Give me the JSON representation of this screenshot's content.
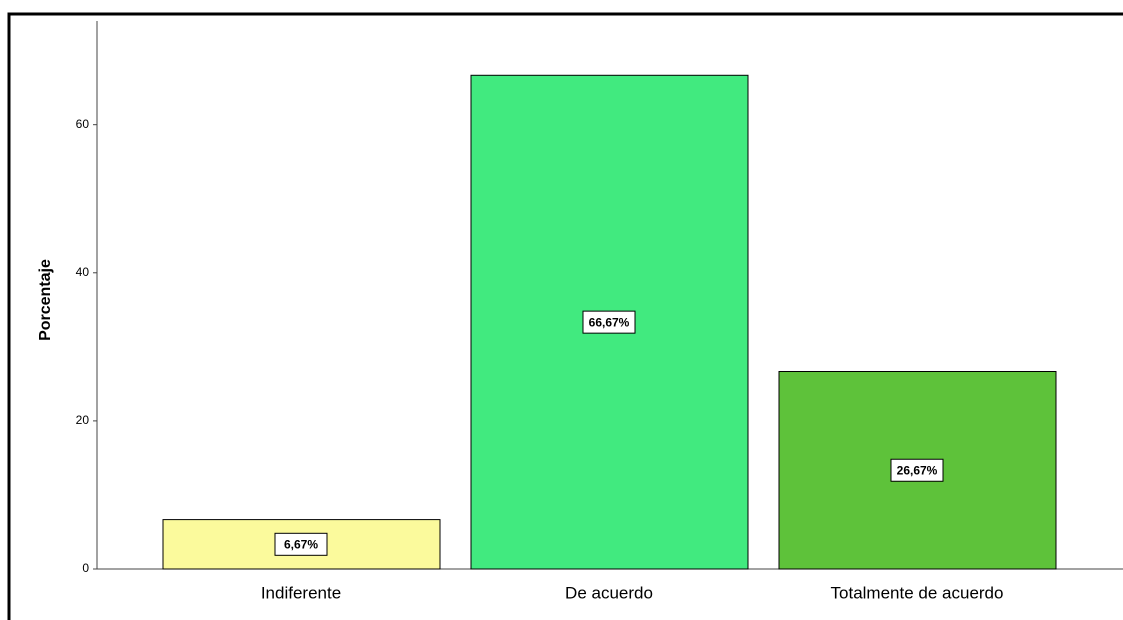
{
  "chart_data": {
    "type": "bar",
    "y_label": "Porcentaje",
    "categories": [
      "Indiferente",
      "De acuerdo",
      "Totalmente de acuerdo"
    ],
    "values": [
      6.67,
      66.67,
      26.67
    ],
    "value_labels": [
      "6,67%",
      "66,67%",
      "26,67%"
    ],
    "colors": [
      "#fbfa9c",
      "#41ea7f",
      "#5ec23a"
    ],
    "ylim": [
      0,
      74
    ],
    "yticks": [
      0,
      20,
      40,
      60
    ],
    "grid": false
  }
}
